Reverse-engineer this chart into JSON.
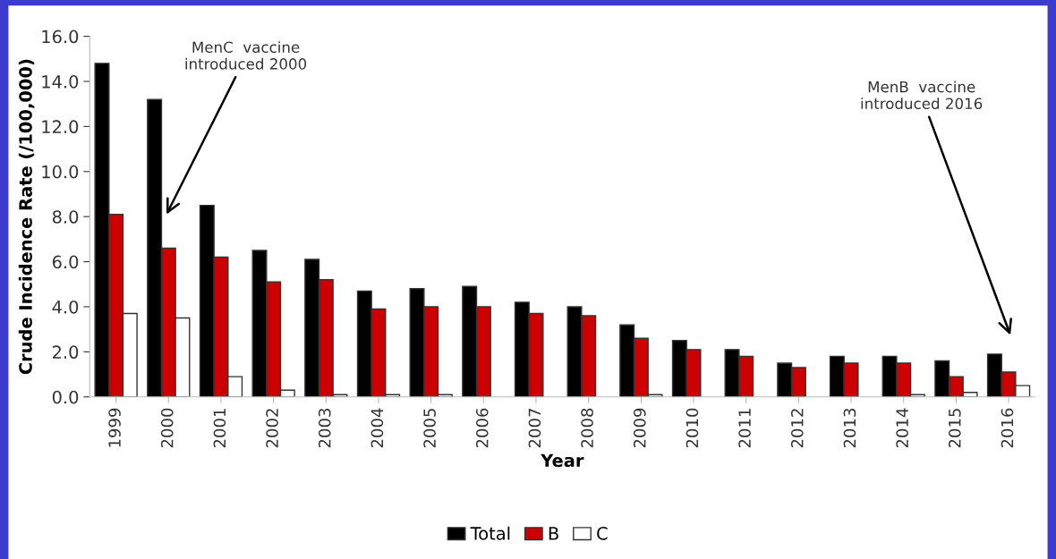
{
  "chart_data": {
    "type": "bar",
    "xlabel": "Year",
    "ylabel": "Crude Incidence Rate (/100,000)",
    "categories": [
      "1999",
      "2000",
      "2001",
      "2002",
      "2003",
      "2004",
      "2005",
      "2006",
      "2007",
      "2008",
      "2009",
      "2010",
      "2011",
      "2012",
      "2013",
      "2014",
      "2015",
      "2016"
    ],
    "series": [
      {
        "name": "Total",
        "color": "#000000",
        "values": [
          14.8,
          13.2,
          8.5,
          6.5,
          6.1,
          4.7,
          4.8,
          4.9,
          4.2,
          4.0,
          3.2,
          2.5,
          2.1,
          1.5,
          1.8,
          1.8,
          1.6,
          1.9
        ]
      },
      {
        "name": "B",
        "color": "#cc0000",
        "values": [
          8.1,
          6.6,
          6.2,
          5.1,
          5.2,
          3.9,
          4.0,
          4.0,
          3.7,
          3.6,
          2.6,
          2.1,
          1.8,
          1.3,
          1.5,
          1.5,
          0.9,
          1.1
        ]
      },
      {
        "name": "C",
        "color": "#ffffff",
        "values": [
          3.7,
          3.5,
          0.9,
          0.3,
          0.1,
          0.1,
          0.1,
          0.0,
          0.0,
          0.0,
          0.1,
          0.0,
          0.0,
          0.0,
          0.0,
          0.1,
          0.2,
          0.5
        ]
      }
    ],
    "ylim": [
      0,
      16
    ],
    "yticks": [
      {
        "value": 0,
        "label": "0.0"
      },
      {
        "value": 2,
        "label": "2.0"
      },
      {
        "value": 4,
        "label": "4.0"
      },
      {
        "value": 6,
        "label": "6.0"
      },
      {
        "value": 8,
        "label": "8.0"
      },
      {
        "value": 10,
        "label": "10.0"
      },
      {
        "value": 12,
        "label": "12.0"
      },
      {
        "value": 14,
        "label": "14.0"
      },
      {
        "value": 16,
        "label": "16.0"
      }
    ],
    "annotations": [
      "MenC  vaccine\nintroduced 2000",
      "MenB  vaccine\nintroduced 2016"
    ],
    "grid": false,
    "legend": "bottom"
  }
}
